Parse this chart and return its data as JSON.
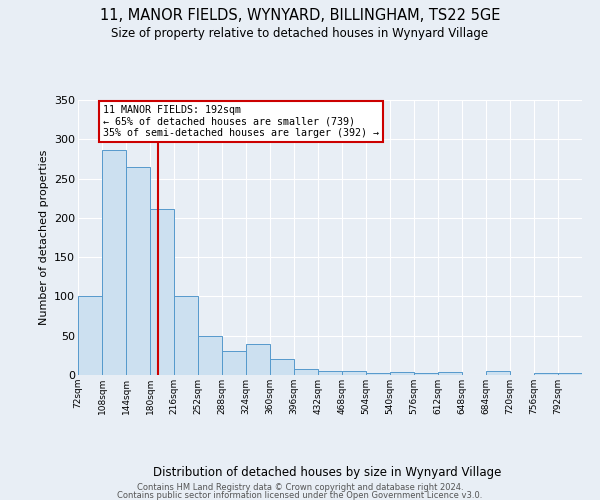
{
  "title": "11, MANOR FIELDS, WYNYARD, BILLINGHAM, TS22 5GE",
  "subtitle": "Size of property relative to detached houses in Wynyard Village",
  "xlabel": "Distribution of detached houses by size in Wynyard Village",
  "ylabel": "Number of detached properties",
  "bin_labels": [
    "72sqm",
    "108sqm",
    "144sqm",
    "180sqm",
    "216sqm",
    "252sqm",
    "288sqm",
    "324sqm",
    "360sqm",
    "396sqm",
    "432sqm",
    "468sqm",
    "504sqm",
    "540sqm",
    "576sqm",
    "612sqm",
    "648sqm",
    "684sqm",
    "720sqm",
    "756sqm",
    "792sqm"
  ],
  "bin_edges": [
    72,
    108,
    144,
    180,
    216,
    252,
    288,
    324,
    360,
    396,
    432,
    468,
    504,
    540,
    576,
    612,
    648,
    684,
    720,
    756,
    792,
    828
  ],
  "bar_values": [
    100,
    287,
    265,
    211,
    101,
    50,
    30,
    40,
    20,
    8,
    5,
    5,
    3,
    4,
    2,
    4,
    0,
    5,
    0,
    3,
    2
  ],
  "bar_face_color": "#cce0f0",
  "bar_edge_color": "#5599cc",
  "vline_color": "#cc0000",
  "vline_x": 192,
  "annotation_line1": "11 MANOR FIELDS: 192sqm",
  "annotation_line2": "← 65% of detached houses are smaller (739)",
  "annotation_line3": "35% of semi-detached houses are larger (392) →",
  "annotation_box_color": "#cc0000",
  "annotation_text_color": "#000000",
  "ylim": [
    0,
    350
  ],
  "background_color": "#e8eef5",
  "footer_line1": "Contains HM Land Registry data © Crown copyright and database right 2024.",
  "footer_line2": "Contains public sector information licensed under the Open Government Licence v3.0."
}
